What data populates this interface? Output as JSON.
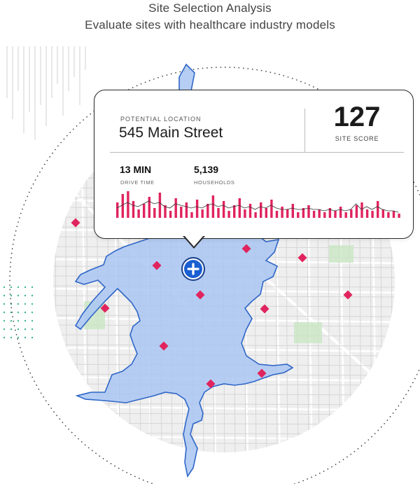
{
  "header": {
    "title": "Site Selection Analysis",
    "subtitle": "Evaluate sites with healthcare industry models"
  },
  "colors": {
    "accent": "#e0245e",
    "catchment_fill": "#a9c6f2",
    "catchment_stroke": "#2f66c7",
    "pin": "#1a5fd1"
  },
  "icons": {
    "site_marker": "plus-icon",
    "competitor_marker": "diamond-icon"
  },
  "card": {
    "location_label": "POTENTIAL LOCATION",
    "address": "545 Main Street",
    "score": "127",
    "score_label": "SITE SCORE",
    "drive_time_value": "13 MIN",
    "drive_time_label": "DRIVE TIME",
    "households_value": "5,139",
    "households_label": "HOUSEHOLDS"
  },
  "chart_data": {
    "type": "bar",
    "values": [
      0.55,
      0.85,
      0.95,
      0.6,
      0.3,
      0.5,
      0.75,
      0.35,
      0.9,
      0.45,
      0.25,
      0.7,
      0.4,
      0.55,
      0.2,
      0.65,
      0.3,
      0.5,
      0.8,
      0.35,
      0.6,
      0.25,
      0.45,
      0.7,
      0.3,
      0.5,
      0.2,
      0.55,
      0.35,
      0.65,
      0.25,
      0.4,
      0.3,
      0.5,
      0.2,
      0.35,
      0.45,
      0.25,
      0.3,
      0.2,
      0.35,
      0.25,
      0.4,
      0.2,
      0.3,
      0.45,
      0.55,
      0.3,
      0.25,
      0.6,
      0.3,
      0.2,
      0.25,
      0.15
    ],
    "line": [
      0.35,
      0.45,
      0.55,
      0.45,
      0.4,
      0.5,
      0.6,
      0.5,
      0.55,
      0.4,
      0.35,
      0.5,
      0.45,
      0.4,
      0.35,
      0.4,
      0.35,
      0.45,
      0.5,
      0.4,
      0.45,
      0.35,
      0.4,
      0.45,
      0.35,
      0.4,
      0.3,
      0.4,
      0.35,
      0.45,
      0.35,
      0.3,
      0.3,
      0.35,
      0.3,
      0.3,
      0.35,
      0.3,
      0.3,
      0.25,
      0.3,
      0.25,
      0.3,
      0.25,
      0.3,
      0.5,
      0.3,
      0.4,
      0.3,
      0.4,
      0.3,
      0.25,
      0.25,
      0.2
    ]
  },
  "map": {
    "competitor_count": 13
  }
}
